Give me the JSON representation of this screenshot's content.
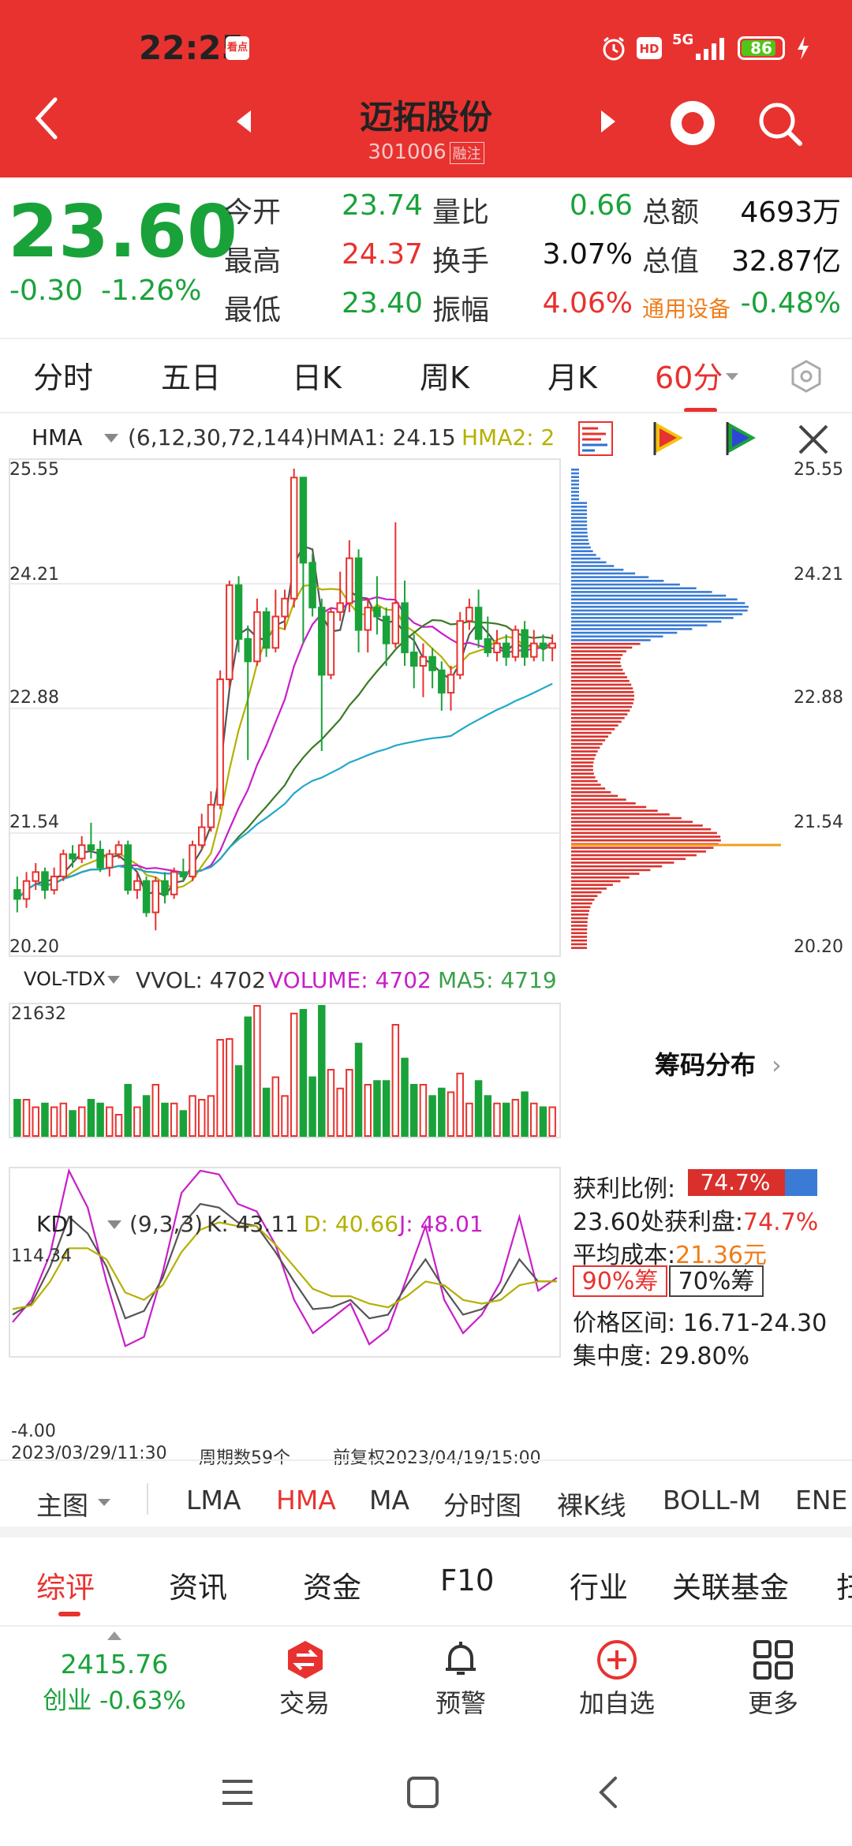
{
  "status_bar": {
    "time": "22:25",
    "app_badge": "看点",
    "signal": "5G",
    "battery": "86",
    "battery_level": 0.86
  },
  "header": {
    "stock_name": "迈拓股份",
    "stock_code": "301006",
    "margin_tag": "融注"
  },
  "quote": {
    "price": "23.60",
    "change": "-0.30",
    "change_pct": "-1.26%",
    "rows": [
      {
        "l1": "今开",
        "v1": "23.74",
        "c1": "green",
        "l2": "量比",
        "v2": "0.66",
        "c2": "green",
        "l3": "总额",
        "v3": "4693万",
        "c3": "black"
      },
      {
        "l1": "最高",
        "v1": "24.37",
        "c1": "red",
        "l2": "换手",
        "v2": "3.07%",
        "c2": "black",
        "l3": "总值",
        "v3": "32.87亿",
        "c3": "black"
      },
      {
        "l1": "最低",
        "v1": "23.40",
        "c1": "green",
        "l2": "振幅",
        "v2": "4.06%",
        "c2": "red",
        "l3": "通用设备",
        "v3": "-0.48%",
        "c3": "green"
      }
    ]
  },
  "period_tabs": [
    "分时",
    "五日",
    "日K",
    "周K",
    "月K",
    "60分"
  ],
  "active_period": "60分",
  "main_indicator": {
    "name": "HMA",
    "params": "(6,12,30,72,144)",
    "hma1": "HMA1: 24.15",
    "hma2": "HMA2: 2"
  },
  "price_axis": [
    "25.55",
    "24.21",
    "22.88",
    "21.54",
    "20.20"
  ],
  "vol_indicator": {
    "name": "VOL-TDX",
    "vvol": "VVOL: 4702",
    "volume": "VOLUME: 4702",
    "ma5": "MA5: 4719",
    "max": "21632"
  },
  "kdj": {
    "name": "KDJ",
    "params": "(9,3,3)",
    "k": "K: 43.11",
    "d": "D: 40.66",
    "j": "J: 48.01",
    "top": "114.34",
    "bottom": "-4.00"
  },
  "footer_axis": {
    "start": "2023/03/29/11:30",
    "count": "周期数59个",
    "end": "前复权2023/04/19/15:00"
  },
  "chips": {
    "title": "筹码分布",
    "profit_label": "获利比例:",
    "profit_value": "74.7%",
    "profit_ratio": 0.747,
    "profit_line_prefix": "23.60处获利盘:",
    "profit_line_value": "74.7%",
    "avg_cost_label": "平均成本:",
    "avg_cost_value": "21.36元",
    "tab90": "90%筹",
    "tab70": "70%筹",
    "range": "价格区间: 16.71-24.30",
    "concentration": "集中度: 29.80%"
  },
  "main_chart_tabs": [
    "主图",
    "LMA",
    "HMA",
    "MA",
    "分时图",
    "裸K线",
    "BOLL-M",
    "ENE"
  ],
  "active_main_chart_tab": "HMA",
  "section_tabs": [
    "综评",
    "资讯",
    "资金",
    "F10",
    "行业",
    "关联基金",
    "扫"
  ],
  "index": {
    "value": "2415.76",
    "label": "创业 -0.63%"
  },
  "bottom_nav": [
    "交易",
    "预警",
    "加自选",
    "更多"
  ],
  "colors": {
    "up": "#e8322f",
    "down": "#1aa23a",
    "header": "#e8322f",
    "hma2": "#b5b000",
    "volume": "#c81fc8",
    "ma5": "#3aa04a"
  },
  "chart_data": {
    "type": "candlestick",
    "y_range": [
      20.2,
      25.55
    ],
    "candles": [
      [
        20.85,
        20.75,
        21.0,
        20.6
      ],
      [
        20.75,
        20.95,
        21.05,
        20.65
      ],
      [
        20.95,
        21.05,
        21.15,
        20.85
      ],
      [
        21.05,
        20.85,
        21.1,
        20.75
      ],
      [
        20.85,
        21.0,
        21.1,
        20.8
      ],
      [
        21.0,
        21.25,
        21.3,
        20.95
      ],
      [
        21.25,
        21.2,
        21.35,
        21.1
      ],
      [
        21.2,
        21.35,
        21.45,
        21.15
      ],
      [
        21.35,
        21.3,
        21.6,
        21.2
      ],
      [
        21.3,
        21.1,
        21.4,
        21.05
      ],
      [
        21.1,
        21.25,
        21.3,
        21.0
      ],
      [
        21.25,
        21.35,
        21.4,
        21.2
      ],
      [
        21.35,
        20.85,
        21.4,
        20.8
      ],
      [
        20.85,
        20.95,
        21.05,
        20.75
      ],
      [
        20.95,
        20.6,
        21.0,
        20.55
      ],
      [
        20.6,
        20.95,
        21.0,
        20.4
      ],
      [
        20.95,
        20.8,
        21.05,
        20.7
      ],
      [
        20.8,
        21.05,
        21.1,
        20.75
      ],
      [
        21.05,
        21.0,
        21.2,
        20.95
      ],
      [
        21.0,
        21.35,
        21.4,
        20.95
      ],
      [
        21.35,
        21.55,
        21.7,
        21.3
      ],
      [
        21.55,
        21.8,
        21.95,
        21.5
      ],
      [
        21.8,
        23.2,
        23.3,
        21.75
      ],
      [
        23.2,
        24.25,
        24.3,
        23.1
      ],
      [
        24.25,
        23.65,
        24.35,
        23.5
      ],
      [
        23.65,
        23.4,
        23.8,
        22.3
      ],
      [
        23.4,
        23.95,
        24.1,
        23.35
      ],
      [
        23.95,
        23.55,
        24.0,
        23.45
      ],
      [
        23.55,
        23.9,
        24.2,
        23.5
      ],
      [
        23.9,
        24.1,
        24.2,
        23.75
      ],
      [
        24.1,
        25.45,
        25.55,
        24.0
      ],
      [
        25.45,
        24.5,
        25.2,
        23.6
      ],
      [
        24.5,
        24.0,
        24.6,
        23.9
      ],
      [
        24.0,
        23.25,
        24.1,
        22.4
      ],
      [
        23.25,
        23.95,
        24.0,
        23.2
      ],
      [
        23.95,
        24.05,
        24.4,
        23.85
      ],
      [
        24.05,
        24.55,
        24.75,
        23.95
      ],
      [
        24.55,
        23.75,
        24.65,
        23.5
      ],
      [
        23.75,
        24.0,
        24.1,
        23.5
      ],
      [
        24.0,
        23.9,
        24.35,
        23.7
      ],
      [
        23.9,
        23.6,
        24.0,
        23.35
      ],
      [
        23.6,
        24.05,
        24.95,
        23.55
      ],
      [
        24.05,
        23.5,
        24.3,
        23.35
      ],
      [
        23.5,
        23.35,
        23.7,
        23.1
      ],
      [
        23.35,
        23.45,
        23.6,
        23.0
      ],
      [
        23.45,
        23.3,
        23.55,
        23.1
      ],
      [
        23.3,
        23.05,
        23.4,
        22.85
      ],
      [
        23.05,
        23.25,
        23.35,
        22.85
      ],
      [
        23.25,
        23.85,
        23.95,
        23.2
      ],
      [
        23.85,
        24.0,
        24.1,
        23.75
      ],
      [
        24.0,
        23.65,
        24.2,
        23.55
      ],
      [
        23.65,
        23.5,
        23.9,
        23.45
      ],
      [
        23.5,
        23.6,
        23.75,
        23.4
      ],
      [
        23.6,
        23.45,
        23.7,
        23.35
      ],
      [
        23.45,
        23.75,
        23.8,
        23.4
      ],
      [
        23.75,
        23.45,
        23.85,
        23.35
      ],
      [
        23.45,
        23.6,
        23.75,
        23.4
      ],
      [
        23.6,
        23.55,
        23.7,
        23.4
      ],
      [
        23.55,
        23.6,
        23.7,
        23.4
      ]
    ]
  }
}
